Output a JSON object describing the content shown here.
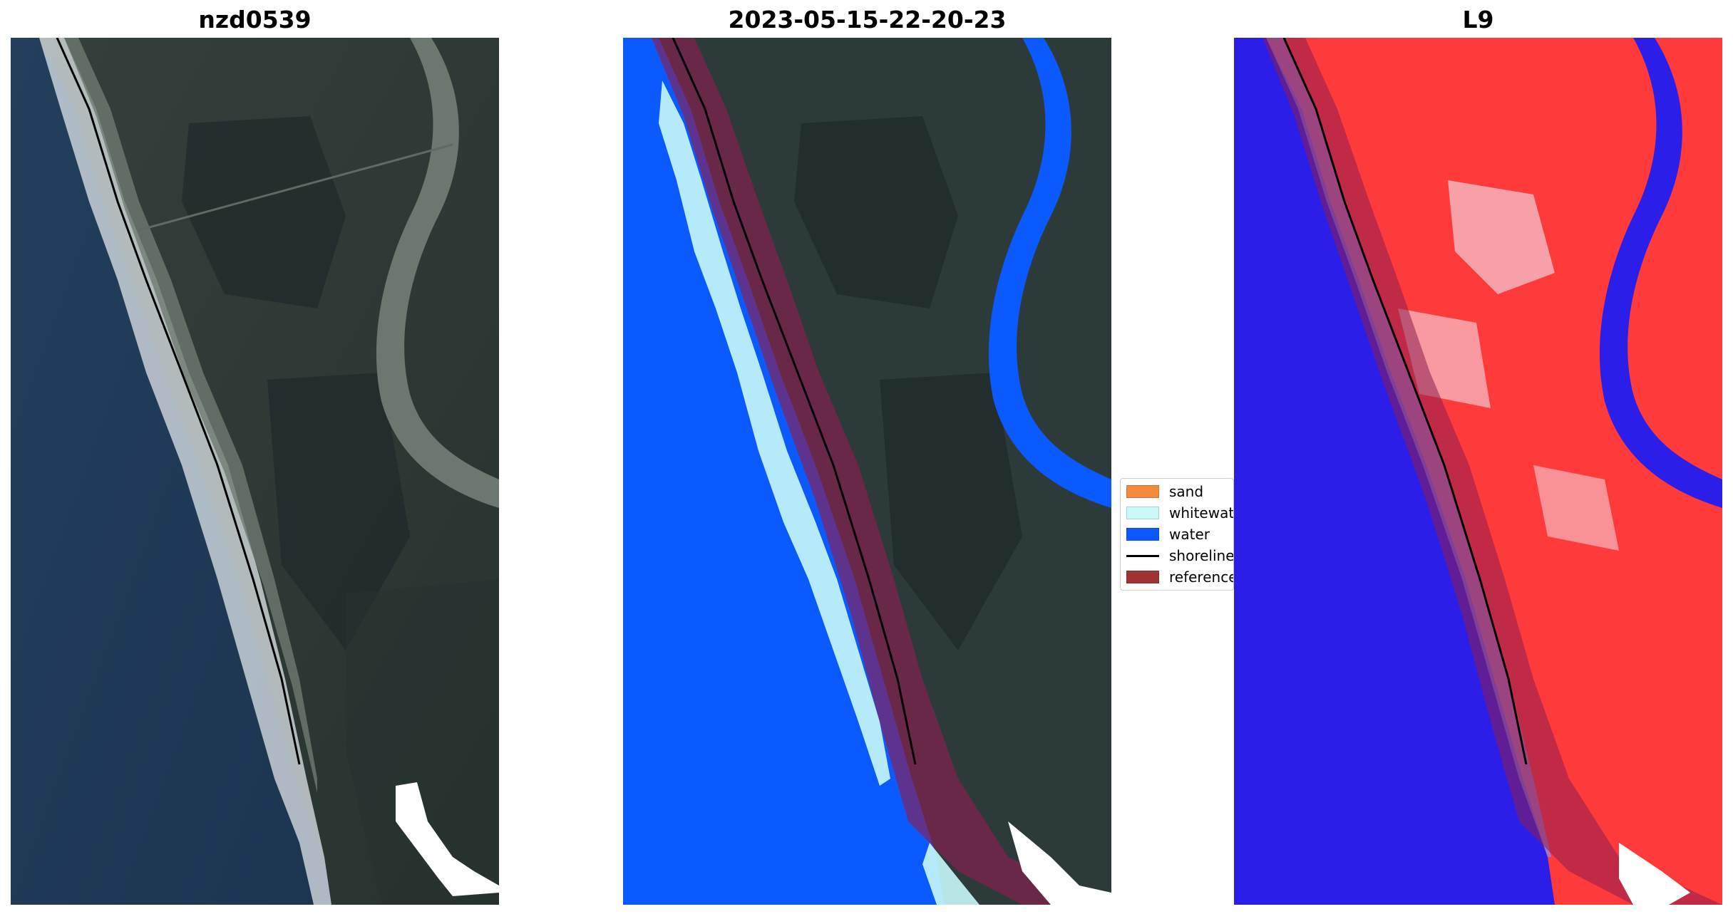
{
  "panels": [
    {
      "title": "nzd0539"
    },
    {
      "title": "2023-05-15-22-20-23"
    },
    {
      "title": "L9"
    }
  ],
  "legend": {
    "items": [
      {
        "label": "sand",
        "color": "#f28c3c",
        "type": "patch"
      },
      {
        "label": "whitewater",
        "color": "#c8fafa",
        "type": "patch"
      },
      {
        "label": "water",
        "color": "#0a5aff",
        "type": "patch"
      },
      {
        "label": "shoreline",
        "color": "#000000",
        "type": "line"
      },
      {
        "label": "reference",
        "color": "#a03232",
        "type": "patch"
      }
    ]
  },
  "colors": {
    "ocean": "#1f3c5a",
    "land": "#2c3a3a",
    "river": "#6d7a73",
    "water_mask": "#0a5aff",
    "whitewater": "#c8fafa",
    "reference_band": "#8c1e50",
    "index_high": "#ff3a3a",
    "index_low": "#2a1ee8"
  }
}
